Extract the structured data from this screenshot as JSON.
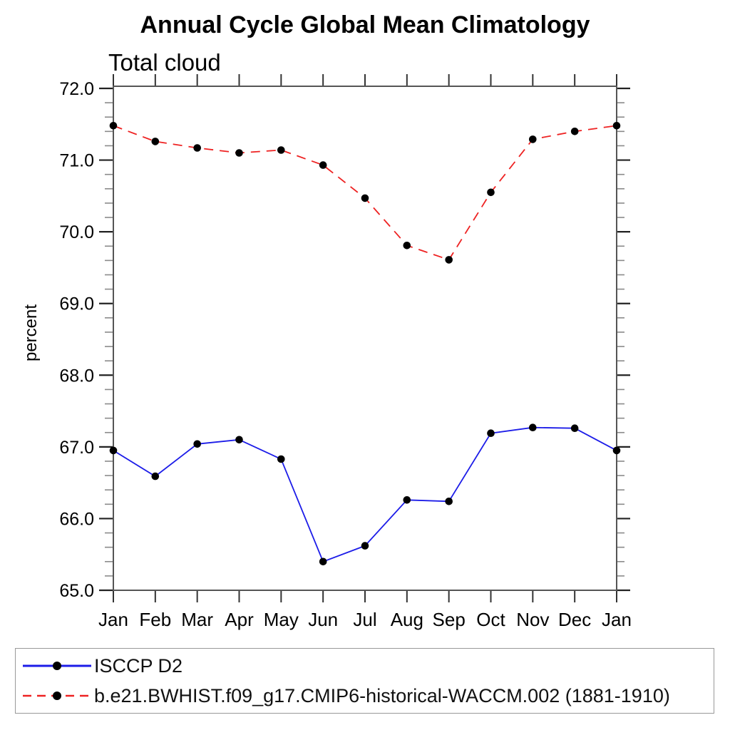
{
  "chart_data": {
    "type": "line",
    "title": "Annual Cycle Global Mean Climatology",
    "subtitle": "Total cloud",
    "xlabel": "",
    "ylabel": "percent",
    "categories": [
      "Jan",
      "Feb",
      "Mar",
      "Apr",
      "May",
      "Jun",
      "Jul",
      "Aug",
      "Sep",
      "Oct",
      "Nov",
      "Dec",
      "Jan"
    ],
    "ylim": [
      65.0,
      72.0
    ],
    "ytick_step": 1.0,
    "yminor_step": 0.2,
    "ytick_decimals": 1,
    "grid": false,
    "legend_position": "bottom",
    "series": [
      {
        "name": "ISCCP D2",
        "line_style": "solid",
        "color": "#1c1ce8",
        "marker": "filled-circle",
        "marker_color": "#000000",
        "values": [
          66.95,
          66.59,
          67.04,
          67.1,
          66.83,
          65.4,
          65.62,
          66.26,
          66.24,
          67.19,
          67.27,
          67.26,
          66.95
        ]
      },
      {
        "name": "b.e21.BWHIST.f09_g17.CMIP6-historical-WACCM.002 (1881-1910)",
        "line_style": "dashed",
        "color": "#ee2222",
        "marker": "filled-circle",
        "marker_color": "#000000",
        "values": [
          71.48,
          71.26,
          71.17,
          71.1,
          71.14,
          70.93,
          70.47,
          69.81,
          69.61,
          70.55,
          71.29,
          71.4,
          71.48
        ]
      }
    ]
  }
}
